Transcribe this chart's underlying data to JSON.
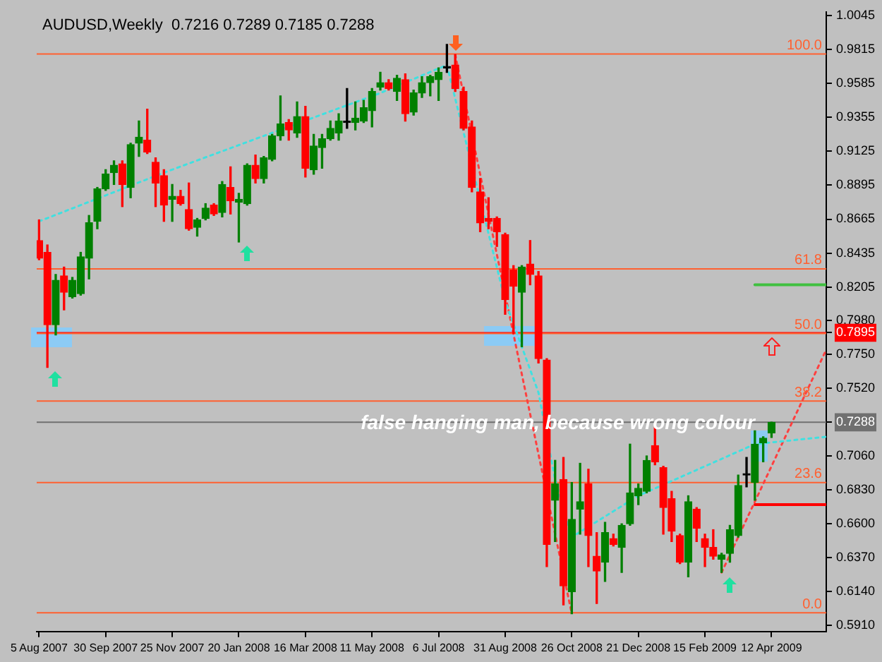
{
  "chart_data": {
    "type": "candlestick",
    "title": "AUDUSD,Weekly  0.7216 0.7289 0.7185 0.7288",
    "x": [
      "2007-08-05",
      "2007-08-12",
      "2007-08-19",
      "2007-08-26",
      "2007-09-02",
      "2007-09-09",
      "2007-09-16",
      "2007-09-23",
      "2007-09-30",
      "2007-10-07",
      "2007-10-14",
      "2007-10-21",
      "2007-10-28",
      "2007-11-04",
      "2007-11-11",
      "2007-11-18",
      "2007-11-25",
      "2007-12-02",
      "2007-12-09",
      "2007-12-16",
      "2007-12-23",
      "2007-12-30",
      "2008-01-06",
      "2008-01-13",
      "2008-01-20",
      "2008-01-27",
      "2008-02-03",
      "2008-02-10",
      "2008-02-17",
      "2008-02-24",
      "2008-03-02",
      "2008-03-09",
      "2008-03-16",
      "2008-03-23",
      "2008-03-30",
      "2008-04-06",
      "2008-04-13",
      "2008-04-20",
      "2008-04-27",
      "2008-05-04",
      "2008-05-11",
      "2008-05-18",
      "2008-05-25",
      "2008-06-01",
      "2008-06-08",
      "2008-06-15",
      "2008-06-22",
      "2008-06-29",
      "2008-07-06",
      "2008-07-13",
      "2008-07-20",
      "2008-07-27",
      "2008-08-03",
      "2008-08-10",
      "2008-08-17",
      "2008-08-24",
      "2008-08-31",
      "2008-09-07",
      "2008-09-14",
      "2008-09-21",
      "2008-09-28",
      "2008-10-05",
      "2008-10-12",
      "2008-10-19",
      "2008-10-26",
      "2008-11-02",
      "2008-11-09",
      "2008-11-16",
      "2008-11-23",
      "2008-11-30",
      "2008-12-07",
      "2008-12-14",
      "2008-12-21",
      "2008-12-28",
      "2009-01-04",
      "2009-01-11",
      "2009-01-18",
      "2009-01-25",
      "2009-02-01",
      "2009-02-08",
      "2009-02-15",
      "2009-02-22",
      "2009-03-01",
      "2009-03-08",
      "2009-03-15",
      "2009-03-22",
      "2009-03-29",
      "2009-04-05",
      "2009-04-12"
    ],
    "ohlc": [
      [
        0.852,
        0.866,
        0.839,
        0.84
      ],
      [
        0.844,
        0.849,
        0.766,
        0.795
      ],
      [
        0.795,
        0.829,
        0.788,
        0.825
      ],
      [
        0.828,
        0.834,
        0.805,
        0.817
      ],
      [
        0.814,
        0.827,
        0.813,
        0.825
      ],
      [
        0.816,
        0.844,
        0.815,
        0.841
      ],
      [
        0.84,
        0.869,
        0.826,
        0.864
      ],
      [
        0.865,
        0.888,
        0.86,
        0.887
      ],
      [
        0.887,
        0.9,
        0.886,
        0.897
      ],
      [
        0.898,
        0.906,
        0.89,
        0.903
      ],
      [
        0.904,
        0.906,
        0.875,
        0.89
      ],
      [
        0.888,
        0.918,
        0.881,
        0.917
      ],
      [
        0.918,
        0.933,
        0.909,
        0.922
      ],
      [
        0.92,
        0.941,
        0.911,
        0.912
      ],
      [
        0.905,
        0.908,
        0.875,
        0.891
      ],
      [
        0.896,
        0.9,
        0.865,
        0.876
      ],
      [
        0.88,
        0.89,
        0.865,
        0.882
      ],
      [
        0.882,
        0.886,
        0.876,
        0.877
      ],
      [
        0.873,
        0.891,
        0.859,
        0.86
      ],
      [
        0.861,
        0.867,
        0.855,
        0.866
      ],
      [
        0.867,
        0.877,
        0.866,
        0.874
      ],
      [
        0.876,
        0.877,
        0.869,
        0.87
      ],
      [
        0.871,
        0.892,
        0.868,
        0.89
      ],
      [
        0.888,
        0.902,
        0.87,
        0.879
      ],
      [
        0.878,
        0.884,
        0.851,
        0.88
      ],
      [
        0.877,
        0.904,
        0.876,
        0.903
      ],
      [
        0.903,
        0.91,
        0.891,
        0.894
      ],
      [
        0.894,
        0.909,
        0.891,
        0.908
      ],
      [
        0.907,
        0.924,
        0.906,
        0.923
      ],
      [
        0.923,
        0.95,
        0.92,
        0.931
      ],
      [
        0.932,
        0.934,
        0.92,
        0.927
      ],
      [
        0.925,
        0.946,
        0.922,
        0.936
      ],
      [
        0.936,
        0.943,
        0.895,
        0.901
      ],
      [
        0.9,
        0.924,
        0.897,
        0.916
      ],
      [
        0.915,
        0.924,
        0.901,
        0.921
      ],
      [
        0.921,
        0.933,
        0.92,
        0.928
      ],
      [
        0.925,
        0.938,
        0.92,
        0.933
      ],
      [
        0.932,
        0.955,
        0.928,
        0.932
      ],
      [
        0.932,
        0.946,
        0.927,
        0.935
      ],
      [
        0.933,
        0.947,
        0.932,
        0.942
      ],
      [
        0.94,
        0.955,
        0.929,
        0.953
      ],
      [
        0.956,
        0.966,
        0.954,
        0.959
      ],
      [
        0.959,
        0.961,
        0.954,
        0.955
      ],
      [
        0.953,
        0.964,
        0.947,
        0.962
      ],
      [
        0.961,
        0.965,
        0.933,
        0.938
      ],
      [
        0.939,
        0.954,
        0.937,
        0.952
      ],
      [
        0.952,
        0.963,
        0.949,
        0.959
      ],
      [
        0.959,
        0.964,
        0.95,
        0.963
      ],
      [
        0.961,
        0.969,
        0.947,
        0.966
      ],
      [
        0.969,
        0.985,
        0.966,
        0.969
      ],
      [
        0.971,
        0.978,
        0.953,
        0.955
      ],
      [
        0.953,
        0.956,
        0.927,
        0.928
      ],
      [
        0.929,
        0.933,
        0.885,
        0.888
      ],
      [
        0.885,
        0.894,
        0.858,
        0.864
      ],
      [
        0.867,
        0.881,
        0.86,
        0.865
      ],
      [
        0.867,
        0.868,
        0.848,
        0.858
      ],
      [
        0.856,
        0.857,
        0.802,
        0.812
      ],
      [
        0.832,
        0.835,
        0.789,
        0.821
      ],
      [
        0.817,
        0.835,
        0.78,
        0.834
      ],
      [
        0.836,
        0.852,
        0.822,
        0.829
      ],
      [
        0.828,
        0.831,
        0.769,
        0.772
      ],
      [
        0.771,
        0.772,
        0.631,
        0.646
      ],
      [
        0.676,
        0.703,
        0.648,
        0.687
      ],
      [
        0.69,
        0.705,
        0.605,
        0.618
      ],
      [
        0.614,
        0.688,
        0.599,
        0.663
      ],
      [
        0.67,
        0.701,
        0.653,
        0.675
      ],
      [
        0.687,
        0.697,
        0.631,
        0.652
      ],
      [
        0.638,
        0.654,
        0.606,
        0.628
      ],
      [
        0.634,
        0.661,
        0.621,
        0.654
      ],
      [
        0.65,
        0.653,
        0.645,
        0.646
      ],
      [
        0.644,
        0.66,
        0.627,
        0.659
      ],
      [
        0.66,
        0.714,
        0.659,
        0.681
      ],
      [
        0.679,
        0.687,
        0.673,
        0.684
      ],
      [
        0.682,
        0.706,
        0.681,
        0.703
      ],
      [
        0.713,
        0.726,
        0.7,
        0.702
      ],
      [
        0.698,
        0.699,
        0.653,
        0.671
      ],
      [
        0.677,
        0.682,
        0.648,
        0.655
      ],
      [
        0.652,
        0.653,
        0.633,
        0.634
      ],
      [
        0.634,
        0.679,
        0.624,
        0.675
      ],
      [
        0.67,
        0.671,
        0.648,
        0.657
      ],
      [
        0.65,
        0.653,
        0.631,
        0.644
      ],
      [
        0.644,
        0.656,
        0.636,
        0.638
      ],
      [
        0.636,
        0.64,
        0.627,
        0.639
      ],
      [
        0.64,
        0.659,
        0.634,
        0.656
      ],
      [
        0.652,
        0.693,
        0.651,
        0.686
      ],
      [
        0.693,
        0.705,
        0.685,
        0.693
      ],
      [
        0.688,
        0.723,
        0.676,
        0.714
      ],
      [
        0.715,
        0.719,
        0.702,
        0.718
      ],
      [
        0.7216,
        0.7289,
        0.7185,
        0.7288
      ]
    ],
    "colors": [
      "#ff0000",
      "#ff0000",
      "#008000",
      "#ff0000",
      "#008000",
      "#008000",
      "#008000",
      "#008000",
      "#008000",
      "#008000",
      "#ff0000",
      "#008000",
      "#008000",
      "#ff0000",
      "#ff0000",
      "#ff0000",
      "#008000",
      "#ff0000",
      "#ff0000",
      "#008000",
      "#008000",
      "#ff0000",
      "#008000",
      "#ff0000",
      "#008000",
      "#008000",
      "#ff0000",
      "#008000",
      "#008000",
      "#008000",
      "#ff0000",
      "#008000",
      "#ff0000",
      "#008000",
      "#008000",
      "#008000",
      "#008000",
      "#000000",
      "#008000",
      "#008000",
      "#008000",
      "#008000",
      "#ff0000",
      "#008000",
      "#ff0000",
      "#008000",
      "#008000",
      "#008000",
      "#008000",
      "#000000",
      "#ff0000",
      "#ff0000",
      "#ff0000",
      "#ff0000",
      "#ff0000",
      "#ff0000",
      "#ff0000",
      "#ff0000",
      "#008000",
      "#ff0000",
      "#ff0000",
      "#ff0000",
      "#008000",
      "#ff0000",
      "#008000",
      "#008000",
      "#ff0000",
      "#ff0000",
      "#008000",
      "#ff0000",
      "#008000",
      "#008000",
      "#008000",
      "#008000",
      "#ff0000",
      "#ff0000",
      "#ff0000",
      "#ff0000",
      "#008000",
      "#ff0000",
      "#ff0000",
      "#ff0000",
      "#008000",
      "#008000",
      "#008000",
      "#000000",
      "#008000",
      "#008000",
      "#008000"
    ],
    "series": [
      {
        "type": "line",
        "color": "#40e0e0",
        "line_style": "dotted",
        "x": [
          "2007-08-05",
          "2007-11-18",
          "2008-02-17",
          "2008-05-18",
          "2008-07-13",
          "2008-08-31",
          "2008-09-28",
          "2008-10-12",
          "2008-10-26",
          "2008-12-21",
          "2009-03-29",
          "2009-05-28"
        ],
        "values": [
          0.865,
          0.898,
          0.925,
          0.952,
          0.971,
          0.811,
          0.749,
          0.69,
          0.651,
          0.679,
          0.714,
          0.719
        ]
      },
      {
        "type": "line",
        "color": "#ff4040",
        "line_style": "dotted",
        "x": [
          "2008-07-20",
          "2008-10-26"
        ],
        "values": [
          0.978,
          0.599
        ]
      },
      {
        "type": "line",
        "color": "#ff4040",
        "line_style": "dotted",
        "x": [
          "2009-03-01",
          "2009-05-28"
        ],
        "values": [
          0.627,
          0.778
        ]
      },
      {
        "type": "line",
        "color": "#40c040",
        "line_style": "solid",
        "x": [
          "2009-03-29",
          "2009-05-28"
        ],
        "values": [
          0.822,
          0.822
        ]
      },
      {
        "type": "line",
        "color": "#ff0000",
        "line_style": "solid",
        "x": [
          "2009-03-29",
          "2009-05-28"
        ],
        "values": [
          0.673,
          0.673
        ]
      }
    ],
    "ref_lines": [
      {
        "axis": "y",
        "value": 0.7895,
        "color": "#ff0000"
      },
      {
        "axis": "y",
        "value": 0.7288,
        "color": "#707070"
      },
      {
        "axis": "y",
        "value": 0.9785,
        "color": "#ff6030"
      },
      {
        "axis": "y",
        "value": 0.8328,
        "color": "#ff6030"
      },
      {
        "axis": "y",
        "value": 0.789,
        "color": "#ff6030"
      },
      {
        "axis": "y",
        "value": 0.7432,
        "color": "#ff6030"
      },
      {
        "axis": "y",
        "value": 0.688,
        "color": "#ff6030"
      },
      {
        "axis": "y",
        "value": 0.5997,
        "color": "#ff6030"
      }
    ],
    "annotations": [
      "false hanging man, because wrong colour",
      {
        "text": "100.0",
        "x": "2009-05-28",
        "y": 0.9785
      },
      {
        "text": "61.8",
        "x": "2009-05-28",
        "y": 0.8328
      },
      {
        "text": "50.0",
        "x": "2009-05-28",
        "y": 0.789
      },
      {
        "text": "38.2",
        "x": "2009-05-28",
        "y": 0.7432
      },
      {
        "text": "23.6",
        "x": "2009-05-28",
        "y": 0.688
      },
      {
        "text": "0.0",
        "x": "2009-05-28",
        "y": 0.5997
      }
    ],
    "xlim": [
      "2007-08-03",
      "2009-05-28"
    ],
    "xticks": [
      {
        "value": "2007-08-05",
        "label": "5 Aug 2007"
      },
      {
        "value": "2007-09-30",
        "label": "30 Sep 2007"
      },
      {
        "value": "2007-11-25",
        "label": "25 Nov 2007"
      },
      {
        "value": "2008-01-20",
        "label": "20 Jan 2008"
      },
      {
        "value": "2008-03-16",
        "label": "16 Mar 2008"
      },
      {
        "value": "2008-05-11",
        "label": "11 May 2008"
      },
      {
        "value": "2008-07-06",
        "label": "6 Jul 2008"
      },
      {
        "value": "2008-08-31",
        "label": "31 Aug 2008"
      },
      {
        "value": "2008-10-26",
        "label": "26 Oct 2008"
      },
      {
        "value": "2008-12-21",
        "label": "21 Dec 2008"
      },
      {
        "value": "2009-02-15",
        "label": "15 Feb 2009"
      },
      {
        "value": "2009-04-12",
        "label": "12 Apr 2009"
      }
    ],
    "ylim": [
      0.587,
      1.007
    ],
    "yticks": [
      1.0045,
      0.9815,
      0.9585,
      0.9355,
      0.9125,
      0.8895,
      0.8665,
      0.8435,
      0.8205,
      {
        "value": 0.798,
        "label": "0.7980"
      },
      {
        "value": 0.7895,
        "label": "0.7895"
      },
      {
        "value": 0.775,
        "label": "0.7750"
      },
      {
        "value": 0.752,
        "label": "0.7520"
      },
      {
        "value": 0.7288,
        "label": "0.7288"
      },
      {
        "value": 0.706,
        "label": "0.7060"
      },
      {
        "value": 0.683,
        "label": "0.6830"
      },
      {
        "value": 0.66,
        "label": "0.6600"
      },
      {
        "value": 0.637,
        "label": "0.6370"
      },
      {
        "value": 0.614,
        "label": "0.6140"
      },
      {
        "value": 0.591,
        "label": "0.5910"
      }
    ]
  }
}
